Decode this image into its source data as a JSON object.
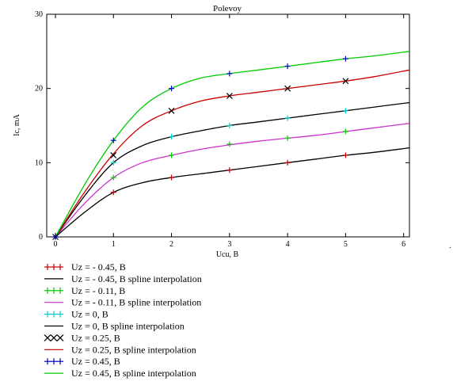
{
  "chart_data": {
    "type": "line",
    "title": "Polevoy",
    "xlabel": "Ucu, B",
    "ylabel": "Ic, mA",
    "xlim": [
      -0.15,
      6.1
    ],
    "ylim": [
      0,
      30
    ],
    "x_ticks": [
      0,
      1,
      2,
      3,
      4,
      5,
      6
    ],
    "y_ticks": [
      0,
      10,
      20,
      30
    ],
    "grid": false,
    "legend_position": "bottom-left",
    "series": [
      {
        "name": "Uz = - 0.45, B",
        "kind": "points",
        "marker": "+",
        "color": "#cc0000",
        "x": [
          0,
          1,
          2,
          3,
          4,
          5
        ],
        "y": [
          0,
          6,
          8,
          9,
          10,
          11
        ]
      },
      {
        "name": "Uz = - 0.45, B spline interpolation",
        "kind": "line",
        "color": "#000000",
        "x": [
          0,
          0.5,
          1,
          1.5,
          2,
          2.5,
          3,
          3.5,
          4,
          4.5,
          5,
          5.5,
          6.1
        ],
        "y": [
          0,
          3.3,
          6,
          7.3,
          8,
          8.5,
          9,
          9.5,
          10,
          10.5,
          11,
          11.4,
          12
        ]
      },
      {
        "name": "Uz = - 0.11, B",
        "kind": "points",
        "marker": "+",
        "color": "#00cc00",
        "x": [
          0,
          1,
          2,
          3,
          4,
          5
        ],
        "y": [
          0,
          8,
          11,
          12.5,
          13.3,
          14.2
        ]
      },
      {
        "name": "Uz = - 0.11, B spline interpolation",
        "kind": "line",
        "color": "#cc33cc",
        "x": [
          0,
          0.5,
          1,
          1.5,
          2,
          2.5,
          3,
          3.5,
          4,
          4.5,
          5,
          5.5,
          6.1
        ],
        "y": [
          0,
          4.5,
          8,
          10,
          11,
          11.8,
          12.4,
          12.9,
          13.3,
          13.7,
          14.2,
          14.7,
          15.3
        ]
      },
      {
        "name": "Uz = 0, B",
        "kind": "points",
        "marker": "+",
        "color": "#00cccc",
        "x": [
          0,
          1,
          2,
          3,
          4,
          5
        ],
        "y": [
          0,
          10,
          13.5,
          15,
          16,
          17
        ]
      },
      {
        "name": "Uz = 0, B spline interpolation",
        "kind": "line",
        "color": "#000000",
        "x": [
          0,
          0.5,
          1,
          1.5,
          2,
          2.5,
          3,
          3.5,
          4,
          4.5,
          5,
          5.5,
          6.1
        ],
        "y": [
          0,
          5.5,
          10,
          12.3,
          13.5,
          14.3,
          15,
          15.5,
          16,
          16.5,
          17,
          17.5,
          18.1
        ]
      },
      {
        "name": "Uz = 0.25, B",
        "kind": "points",
        "marker": "x",
        "color": "#000000",
        "x": [
          0,
          1,
          2,
          3,
          4,
          5
        ],
        "y": [
          0,
          11,
          17,
          19,
          20,
          21
        ]
      },
      {
        "name": "Uz = 0.25, B spline interpolation",
        "kind": "line",
        "color": "#cc0000",
        "x": [
          0,
          0.5,
          1,
          1.5,
          2,
          2.5,
          3,
          3.5,
          4,
          4.5,
          5,
          5.5,
          6.1
        ],
        "y": [
          0,
          6,
          11.2,
          15,
          17,
          18.3,
          19,
          19.5,
          20,
          20.5,
          21,
          21.6,
          22.5
        ]
      },
      {
        "name": "Uz = 0.45, B",
        "kind": "points",
        "marker": "+",
        "color": "#0000cc",
        "x": [
          0,
          1,
          2,
          3,
          4,
          5
        ],
        "y": [
          0,
          13,
          20,
          22,
          23,
          24
        ]
      },
      {
        "name": "Uz = 0.45, B spline interpolation",
        "kind": "line",
        "color": "#00cc00",
        "x": [
          0,
          0.5,
          1,
          1.5,
          2,
          2.5,
          3,
          3.5,
          4,
          4.5,
          5,
          5.5,
          6.1
        ],
        "y": [
          0,
          7,
          13,
          17.5,
          20,
          21.4,
          22,
          22.5,
          23,
          23.5,
          24,
          24.4,
          25
        ]
      }
    ]
  }
}
